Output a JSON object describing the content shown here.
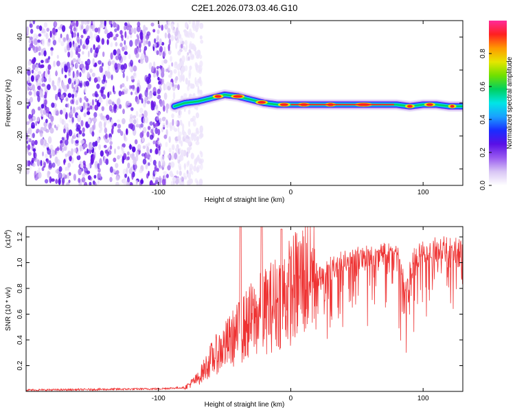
{
  "chart_data": [
    {
      "type": "heatmap",
      "title": "C2E1.2026.073.03.46.G10",
      "xlabel": "Height of straight line (km)",
      "ylabel": "Frequency (Hz)",
      "xlim": [
        -200,
        130
      ],
      "ylim": [
        -50,
        50
      ],
      "xticks": [
        -100,
        0,
        100
      ],
      "xtick_labels": [
        "-100",
        "0",
        "100"
      ],
      "yticks": [
        40,
        20,
        0,
        -20,
        -40
      ],
      "ytick_labels": [
        "40",
        "20",
        "0",
        "-20",
        "-40"
      ],
      "grid": false,
      "colorbar": {
        "label": "Normalized spectral amplitude",
        "range": [
          0,
          1
        ],
        "ticks": [
          0.0,
          0.2,
          0.4,
          0.6,
          0.8
        ],
        "tick_labels": [
          "0.0",
          "0.2",
          "0.4",
          "0.6",
          "0.8"
        ],
        "colors": [
          "#ffffff",
          "#d9c6f5",
          "#9a5cf0",
          "#5a10e6",
          "#1a2cff",
          "#1aa0ff",
          "#00e6e6",
          "#00d060",
          "#70e000",
          "#e6e600",
          "#ff9900",
          "#ff2020",
          "#ff2a9a"
        ]
      },
      "ridge": {
        "x": [
          -88,
          -80,
          -70,
          -60,
          -50,
          -40,
          -30,
          -20,
          -10,
          0,
          20,
          40,
          60,
          80,
          90,
          100,
          110,
          120,
          130
        ],
        "y": [
          -2,
          0,
          1,
          3,
          5,
          4,
          2,
          0,
          -1,
          -1,
          -1,
          -1,
          -1,
          -1,
          -2,
          -1,
          -1,
          -2,
          -2
        ]
      }
    },
    {
      "type": "line",
      "xlabel": "Height of straight line (km)",
      "ylabel": "SNR (10 * v/v)",
      "y_scale_label": "(x10",
      "y_scale_exponent": "4",
      "y_scale_close": ")",
      "xlim": [
        -200,
        130
      ],
      "ylim": [
        0,
        1.28
      ],
      "xticks": [
        -100,
        0,
        100
      ],
      "xtick_labels": [
        "-100",
        "0",
        "100"
      ],
      "yticks": [
        0.2,
        0.4,
        0.6,
        0.8,
        1.0,
        1.2
      ],
      "ytick_labels": [
        "0.2",
        "0.4",
        "0.6",
        "0.8",
        "1.0",
        "1.2"
      ],
      "grid": false,
      "series": [
        {
          "name": "SNR",
          "color": "#ee3333",
          "x": [
            -200,
            -150,
            -100,
            -80,
            -70,
            -60,
            -50,
            -40,
            -30,
            -20,
            -10,
            0,
            10,
            20,
            30,
            40,
            50,
            60,
            70,
            80,
            85,
            88,
            92,
            100,
            110,
            120,
            130
          ],
          "y": [
            0.01,
            0.015,
            0.02,
            0.03,
            0.1,
            0.25,
            0.35,
            0.45,
            0.55,
            0.62,
            0.7,
            0.78,
            0.88,
            0.95,
            1.0,
            1.04,
            1.07,
            1.1,
            1.12,
            1.13,
            0.9,
            0.85,
            1.05,
            1.15,
            1.16,
            1.15,
            1.14
          ]
        }
      ],
      "spikes": [
        {
          "x": -38,
          "y": 1.28
        },
        {
          "x": -22,
          "y": 1.28
        },
        {
          "x": -7,
          "y": 1.26
        }
      ]
    }
  ]
}
